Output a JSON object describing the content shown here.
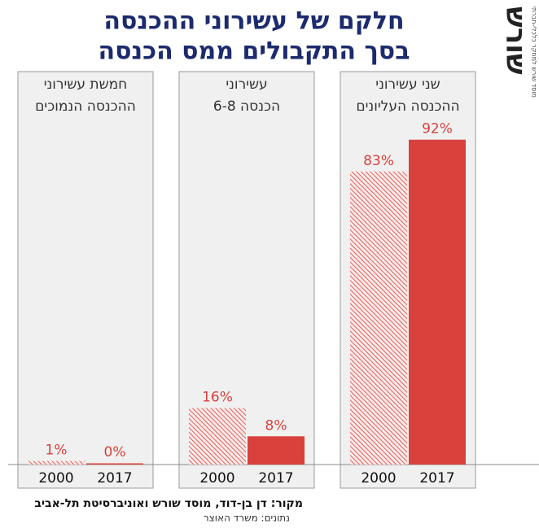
{
  "title": [
    "חלקם של עשירוני ההכנסה",
    "בסך התקבולים ממס הכנסה"
  ],
  "chart_data": [
    {
      "type": "bar",
      "title": [
        "שני עשירוני",
        "ההכנסה העליונים"
      ],
      "categories": [
        "2000",
        "2017"
      ],
      "values": [
        83,
        92
      ],
      "value_labels": [
        "83%",
        "92%"
      ],
      "color": "#d9413c"
    },
    {
      "type": "bar",
      "title": [
        "עשירוני",
        "הכנסה 6-8"
      ],
      "categories": [
        "2000",
        "2017"
      ],
      "values": [
        16,
        8
      ],
      "value_labels": [
        "16%",
        "8%"
      ],
      "color": "#d9413c"
    },
    {
      "type": "bar",
      "title": [
        "חמשת עשירוני",
        "ההכנסה הנמוכים"
      ],
      "categories": [
        "2000",
        "2017"
      ],
      "values": [
        1,
        0
      ],
      "value_labels": [
        "1%",
        "0%"
      ],
      "color": "#d9413c"
    }
  ],
  "source": [
    "מקור:  דן בן-דוד, מוסד שורש ואוניברסיטת תל-אביב",
    "נתונים: משרד האוצר"
  ],
  "logo": {
    "name": "שורש",
    "tagline": "מוסד שורש למחקר כלכלי-חברתי"
  }
}
